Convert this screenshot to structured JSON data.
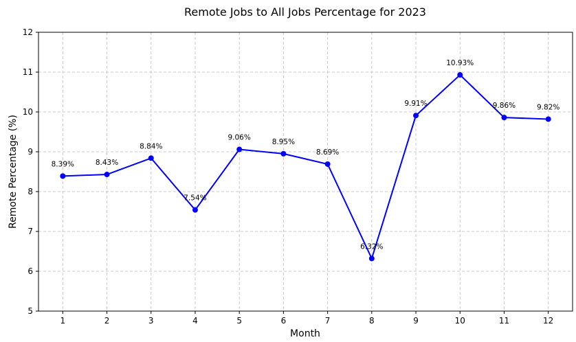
{
  "chart_data": {
    "type": "line",
    "title": "Remote Jobs to All Jobs Percentage for 2023",
    "xlabel": "Month",
    "ylabel": "Remote Percentage (%)",
    "x": [
      1,
      2,
      3,
      4,
      5,
      6,
      7,
      8,
      9,
      10,
      11,
      12
    ],
    "x_tick_labels": [
      "1",
      "2",
      "3",
      "4",
      "5",
      "6",
      "7",
      "8",
      "9",
      "10",
      "11",
      "12"
    ],
    "y_ticks": [
      5,
      6,
      7,
      8,
      9,
      10,
      11,
      12
    ],
    "y_tick_labels": [
      "5",
      "6",
      "7",
      "8",
      "9",
      "10",
      "11",
      "12"
    ],
    "ylim": [
      5,
      12
    ],
    "xlim": [
      0.45,
      12.55
    ],
    "grid": true,
    "series": [
      {
        "name": "Remote Percentage",
        "color": "#0000ff",
        "values": [
          8.39,
          8.43,
          8.84,
          7.54,
          9.06,
          8.95,
          8.69,
          6.32,
          9.91,
          10.93,
          9.86,
          9.82
        ],
        "labels": [
          "8.39%",
          "8.43%",
          "8.84%",
          "7.54%",
          "9.06%",
          "8.95%",
          "8.69%",
          "6.32%",
          "9.91%",
          "10.93%",
          "9.86%",
          "9.82%"
        ]
      }
    ]
  }
}
